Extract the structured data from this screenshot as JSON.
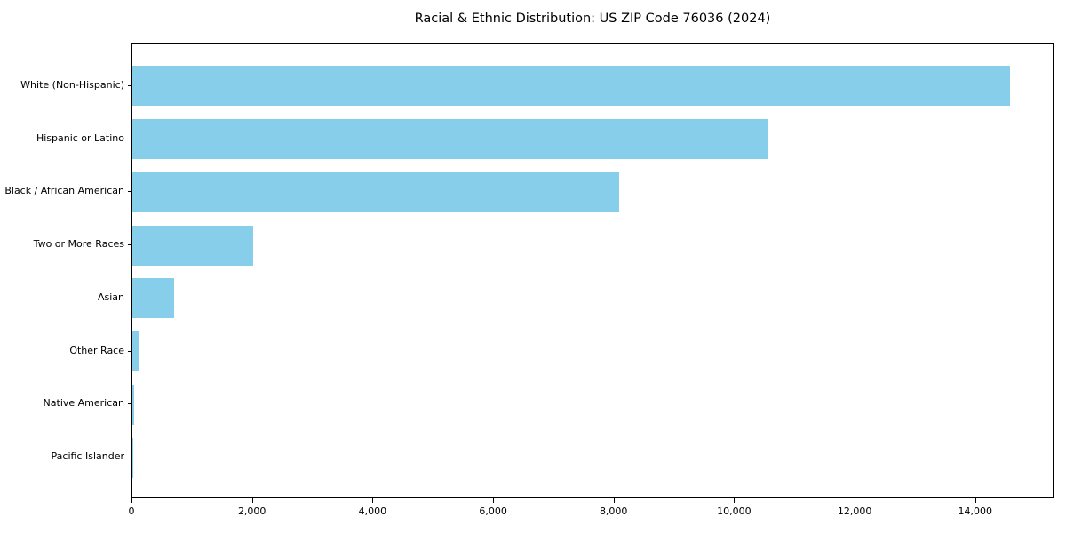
{
  "title": "Racial & Ethnic Distribution: US ZIP Code 76036 (2024)",
  "chart_data": {
    "type": "bar",
    "orientation": "horizontal",
    "title": "Racial & Ethnic Distribution: US ZIP Code 76036 (2024)",
    "categories": [
      "White (Non-Hispanic)",
      "Hispanic or Latino",
      "Black / African American",
      "Two or More Races",
      "Asian",
      "Other Race",
      "Native American",
      "Pacific Islander"
    ],
    "values": [
      14570,
      10540,
      8080,
      2000,
      690,
      110,
      25,
      10
    ],
    "xlabel": "",
    "ylabel": "",
    "xlim": [
      0,
      15300
    ],
    "xticks": [
      0,
      2000,
      4000,
      6000,
      8000,
      10000,
      12000,
      14000
    ],
    "xtick_labels": [
      "0",
      "2,000",
      "4,000",
      "6,000",
      "8,000",
      "10,000",
      "12,000",
      "14,000"
    ],
    "bar_color": "#87ceeb",
    "grid": false,
    "legend": "none",
    "categories_order": "top-to-bottom descending"
  }
}
